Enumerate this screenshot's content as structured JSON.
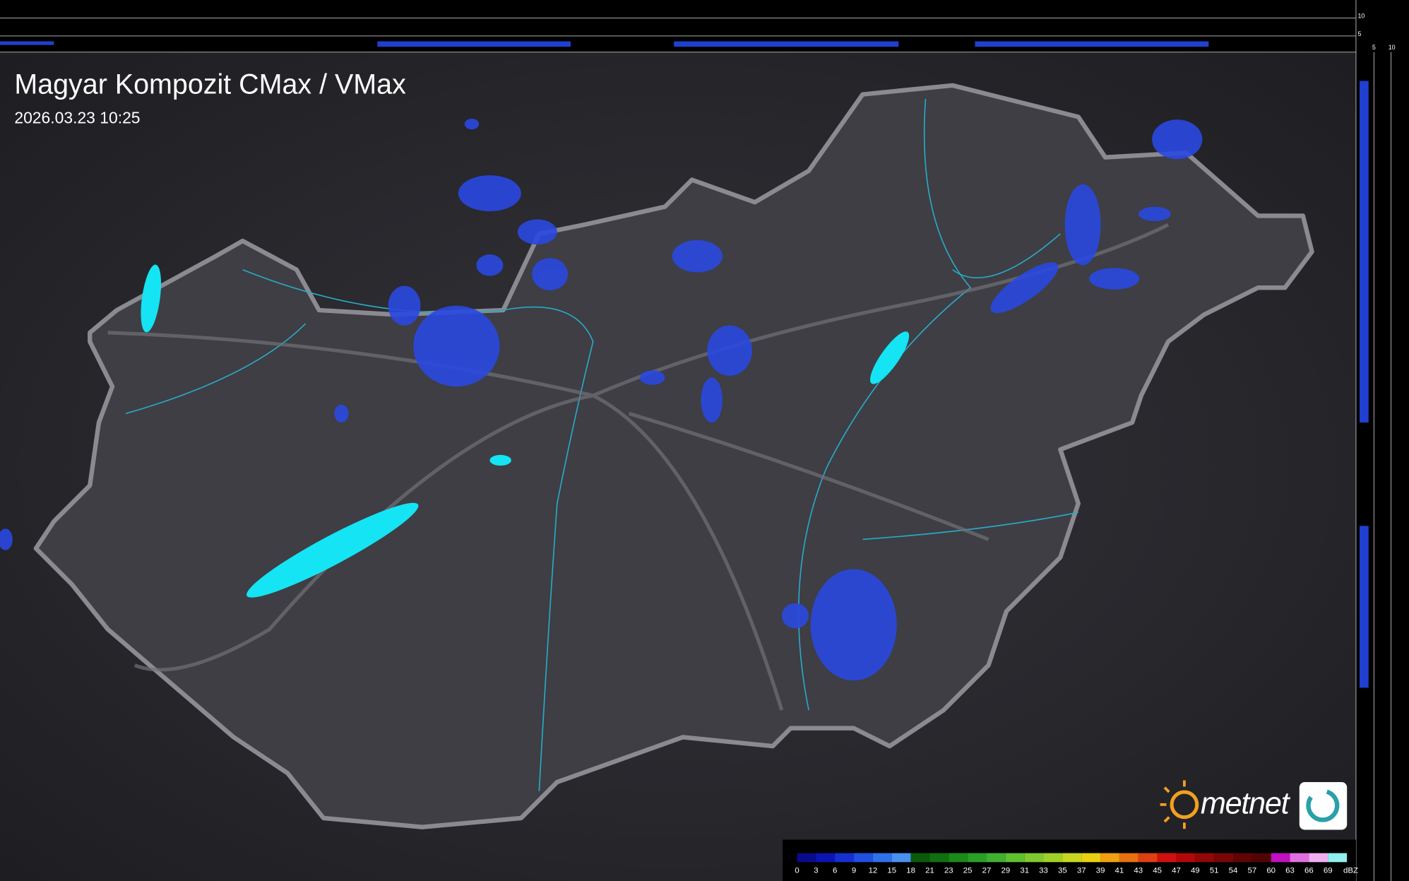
{
  "header": {
    "title": "Magyar Kompozit CMax / VMax",
    "timestamp": "2026.03.23 10:25"
  },
  "side_scale": {
    "vertical": [
      "10",
      "5"
    ],
    "horizontal": [
      "5",
      "10"
    ]
  },
  "logo": {
    "text": "metnet"
  },
  "legend": {
    "labels": [
      "0",
      "3",
      "6",
      "9",
      "12",
      "15",
      "18",
      "21",
      "23",
      "25",
      "27",
      "29",
      "31",
      "33",
      "35",
      "37",
      "39",
      "41",
      "43",
      "45",
      "47",
      "49",
      "51",
      "54",
      "57",
      "60",
      "63",
      "66",
      "69"
    ],
    "unit": "dBZ",
    "colors": [
      "#0a0a8c",
      "#0d14b4",
      "#1530d0",
      "#2050e0",
      "#3070e8",
      "#4a90f0",
      "#0a5a0a",
      "#107010",
      "#1a8a1a",
      "#28a028",
      "#40b030",
      "#60c030",
      "#80c830",
      "#a0d028",
      "#c8d820",
      "#e8d010",
      "#f0a010",
      "#e87010",
      "#e04010",
      "#d01010",
      "#b00808",
      "#900808",
      "#780606",
      "#600404",
      "#500404",
      "#c010c0",
      "#e070e0",
      "#f0b0f0",
      "#90f0f0"
    ]
  }
}
